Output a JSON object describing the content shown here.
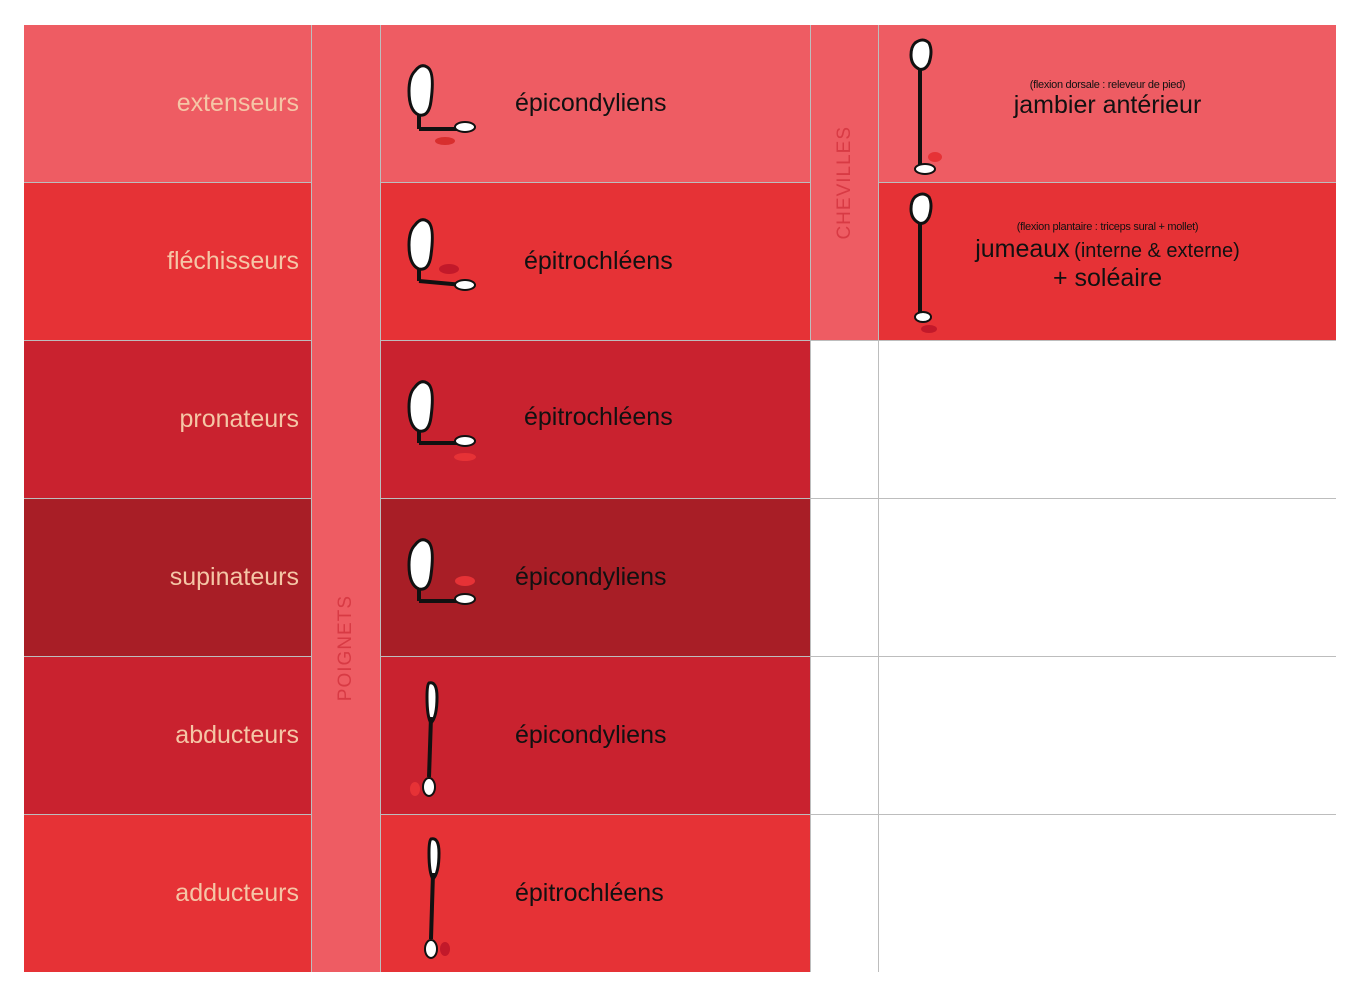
{
  "colors": {
    "pink": "#ee5c63",
    "red": "#e63236",
    "crimson": "#c9222f",
    "dark": "#a81e26",
    "label_text": "#f5c6a6",
    "band_text": "#d83a44"
  },
  "groups": {
    "wrists": "POIGNETS",
    "ankles": "CHEVILLES"
  },
  "wrist_rows": [
    {
      "muscle": "extenseurs",
      "family": "épicondyliens",
      "color": "pink",
      "icon": "wrist-extension-icon"
    },
    {
      "muscle": "fléchisseurs",
      "family": "épitrochléens",
      "color": "red",
      "icon": "wrist-flexion-icon"
    },
    {
      "muscle": "pronateurs",
      "family": "épitrochléens",
      "color": "crimson",
      "icon": "wrist-pronation-icon"
    },
    {
      "muscle": "supinateurs",
      "family": "épicondyliens",
      "color": "dark",
      "icon": "wrist-supination-icon"
    },
    {
      "muscle": "abducteurs",
      "family": "épicondyliens",
      "color": "crimson",
      "icon": "wrist-abduction-icon"
    },
    {
      "muscle": "adducteurs",
      "family": "épitrochléens",
      "color": "red",
      "icon": "wrist-adduction-icon"
    }
  ],
  "ankle_rows": [
    {
      "note": "(flexion dorsale : releveur de pied)",
      "muscle": "jambier antérieur",
      "color": "pink",
      "icon": "ankle-dorsiflexion-icon"
    },
    {
      "note": "(flexion plantaire : triceps sural + mollet)",
      "muscle_main": "jumeaux",
      "muscle_extra": "(interne & externe)",
      "muscle_line2": "+ soléaire",
      "color": "red",
      "icon": "ankle-plantarflexion-icon"
    }
  ]
}
